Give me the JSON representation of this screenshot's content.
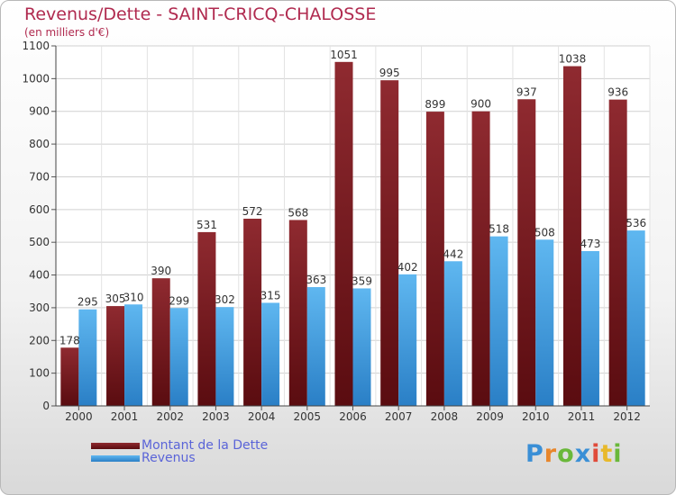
{
  "chart_data": {
    "type": "bar",
    "title": "Revenus/Dette - SAINT-CRICQ-CHALOSSE",
    "subtitle": "(en milliers d'€)",
    "xlabel": "",
    "ylabel": "",
    "ylim": [
      0,
      1100
    ],
    "yticks": [
      0,
      100,
      200,
      300,
      400,
      500,
      600,
      700,
      800,
      900,
      1000,
      1100
    ],
    "grid": true,
    "categories": [
      "2000",
      "2001",
      "2002",
      "2003",
      "2004",
      "2005",
      "2006",
      "2007",
      "2008",
      "2009",
      "2010",
      "2011",
      "2012"
    ],
    "series": [
      {
        "name": "Montant de la Dette",
        "color": "#7a1a1f",
        "values": [
          178,
          305,
          390,
          531,
          572,
          568,
          1051,
          995,
          899,
          900,
          937,
          1038,
          936
        ]
      },
      {
        "name": "Revenus",
        "color": "#3a9de0",
        "values": [
          295,
          310,
          299,
          302,
          315,
          363,
          359,
          402,
          442,
          518,
          508,
          473,
          536
        ]
      }
    ],
    "legend_position": "bottom-left"
  },
  "logo": {
    "text": "Proxiti",
    "letters": [
      {
        "char": "P",
        "color": "#3a8fd6"
      },
      {
        "char": "r",
        "color": "#e8862b"
      },
      {
        "char": "o",
        "color": "#6ab83a"
      },
      {
        "char": "x",
        "color": "#3a8fd6"
      },
      {
        "char": "i",
        "color": "#e04b3a"
      },
      {
        "char": "t",
        "color": "#e8b92b"
      },
      {
        "char": "i",
        "color": "#6ab83a"
      }
    ]
  }
}
